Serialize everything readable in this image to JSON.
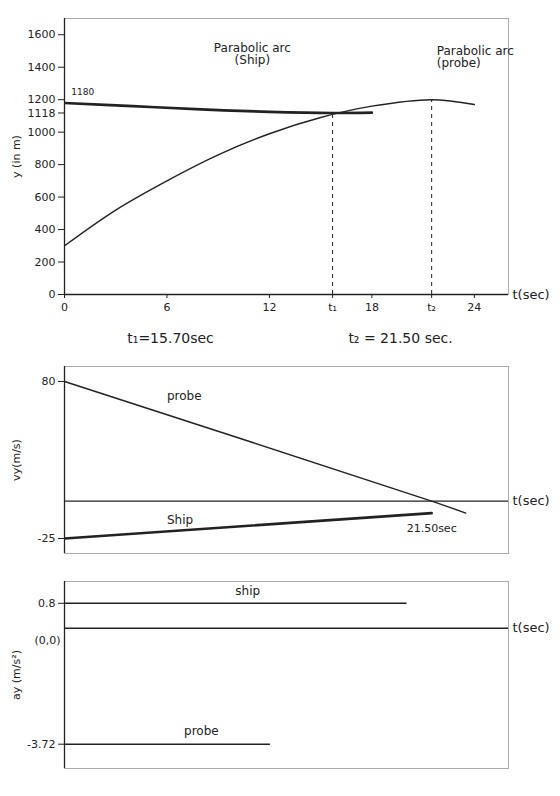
{
  "chart_data": [
    {
      "type": "line",
      "xlabel": "t(sec)",
      "ylabel": "y (in m)",
      "xlim": [
        0,
        26
      ],
      "ylim": [
        0,
        1700
      ],
      "xticks": [
        0,
        6,
        12,
        {
          "value": 15.7,
          "label": "t₁"
        },
        18,
        {
          "value": 21.5,
          "label": "t₂"
        },
        24
      ],
      "yticks": [
        0,
        200,
        400,
        600,
        800,
        1000,
        1118,
        1200,
        1400,
        1600
      ],
      "origin": [
        0,
        0
      ],
      "series": [
        {
          "name": "Parabolic arc (Ship)",
          "color": "#222222",
          "line_style": "thick",
          "x": [
            0,
            4,
            8,
            12,
            15.7,
            18
          ],
          "values": [
            1180,
            1160,
            1140,
            1125,
            1118,
            1120
          ],
          "label_at": [
            11,
            1480
          ]
        },
        {
          "name": "Parabolic arc (probe)",
          "color": "#222222",
          "line_style": "solid",
          "x": [
            0,
            3,
            6,
            9,
            12,
            15,
            18,
            21.5,
            24
          ],
          "values": [
            300,
            520,
            700,
            860,
            990,
            1090,
            1160,
            1200,
            1170
          ],
          "label_at": [
            21.8,
            1460
          ]
        }
      ],
      "reference_lines": [
        {
          "x": 15.7,
          "y": 1118
        },
        {
          "x": 21.5,
          "y": 1200
        }
      ],
      "annotations": [
        {
          "text": "1180",
          "x": 0.4,
          "y": 1245
        }
      ],
      "captions": [
        "t₁=15.70sec",
        "t₂ = 21.50 sec."
      ]
    },
    {
      "type": "line",
      "xlabel": "t(sec)",
      "ylabel": "vy(m/s)",
      "xlim": [
        0,
        26
      ],
      "ylim": [
        -35,
        90
      ],
      "yticks": [
        -25,
        80
      ],
      "tick_labels": "y",
      "origin": [
        0,
        0
      ],
      "series": [
        {
          "name": "probe",
          "color": "#222222",
          "line_style": "solid",
          "x": [
            0,
            21.5,
            23.5
          ],
          "values": [
            80,
            0,
            -8
          ],
          "label_at": [
            6,
            70
          ]
        },
        {
          "name": "Ship",
          "color": "#222222",
          "line_style": "thick",
          "x": [
            0,
            21.5
          ],
          "values": [
            -25,
            -8
          ],
          "label_at": [
            6,
            -13
          ]
        }
      ],
      "annotations": [
        {
          "text": "21.50sec",
          "x": 21.5,
          "y": -18
        }
      ]
    },
    {
      "type": "line",
      "xlabel": "t(sec)",
      "ylabel": "ay (m/s²)",
      "xlim": [
        0,
        26
      ],
      "ylim": [
        -4.5,
        1.5
      ],
      "yticks": [
        -3.72,
        0.8
      ],
      "tick_labels": "y",
      "origin": [
        0,
        0
      ],
      "series": [
        {
          "name": "ship",
          "color": "#222222",
          "line_style": "solid",
          "x": [
            0,
            20
          ],
          "values": [
            0.8,
            0.8
          ],
          "label_at": [
            10,
            1.2
          ]
        },
        {
          "name": "probe",
          "color": "#222222",
          "line_style": "solid",
          "x": [
            0,
            12
          ],
          "values": [
            -3.72,
            -3.72
          ],
          "label_at": [
            7,
            -3.3
          ]
        }
      ],
      "annotations": [
        {
          "text": "(0,0)",
          "x": 0,
          "y": -0.4
        }
      ]
    }
  ]
}
